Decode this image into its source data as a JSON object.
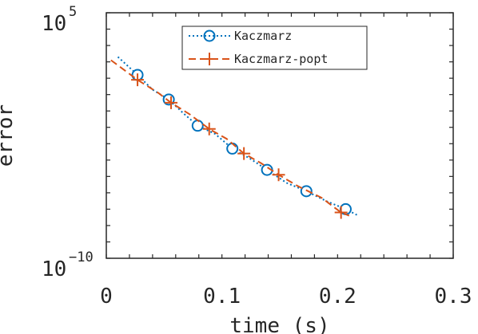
{
  "chart_data": {
    "type": "line",
    "xlabel": "time (s)",
    "ylabel": "error",
    "x_ticks": [
      {
        "value": 0,
        "label": "0"
      },
      {
        "value": 0.1,
        "label": "0.1"
      },
      {
        "value": 0.2,
        "label": "0.2"
      },
      {
        "value": 0.3,
        "label": "0.3"
      }
    ],
    "y_ticks": [
      {
        "value": -10,
        "label_base": "10",
        "label_exp": "−10"
      },
      {
        "value": 5,
        "label_base": "10",
        "label_exp": "5"
      }
    ],
    "xlim": [
      0,
      0.3
    ],
    "ylim_log10": [
      -10,
      5
    ],
    "y_scale": "log",
    "grid": false,
    "legend_position": "top-center",
    "series": [
      {
        "name": "Kaczmarz",
        "color": "#0072BD",
        "line_style": "dotted",
        "marker": "circle",
        "line_x": [
          0.01,
          0.027,
          0.04,
          0.054,
          0.066,
          0.079,
          0.094,
          0.109,
          0.124,
          0.139,
          0.156,
          0.173,
          0.19,
          0.207,
          0.218
        ],
        "line_log10_y": [
          2.3,
          1.2,
          0.3,
          -0.3,
          -1.1,
          -1.9,
          -2.4,
          -3.3,
          -3.9,
          -4.6,
          -5.4,
          -5.9,
          -6.5,
          -7.0,
          -7.4
        ],
        "marker_x": [
          0.027,
          0.054,
          0.079,
          0.109,
          0.139,
          0.173,
          0.207
        ],
        "marker_log10_y": [
          1.2,
          -0.3,
          -1.9,
          -3.3,
          -4.6,
          -5.9,
          -7.0
        ]
      },
      {
        "name": "Kaczmarz-popt",
        "color": "#D95319",
        "line_style": "dashed",
        "marker": "plus",
        "line_x": [
          0.004,
          0.027,
          0.045,
          0.056,
          0.072,
          0.089,
          0.104,
          0.119,
          0.134,
          0.149,
          0.166,
          0.186,
          0.203,
          0.21
        ],
        "line_log10_y": [
          2.1,
          0.9,
          0.1,
          -0.5,
          -1.2,
          -2.1,
          -2.7,
          -3.6,
          -4.2,
          -4.9,
          -5.6,
          -6.3,
          -7.2,
          -7.4
        ],
        "marker_x": [
          0.027,
          0.056,
          0.089,
          0.119,
          0.149,
          0.203
        ],
        "marker_log10_y": [
          0.9,
          -0.5,
          -2.1,
          -3.6,
          -4.9,
          -7.2
        ]
      }
    ]
  }
}
